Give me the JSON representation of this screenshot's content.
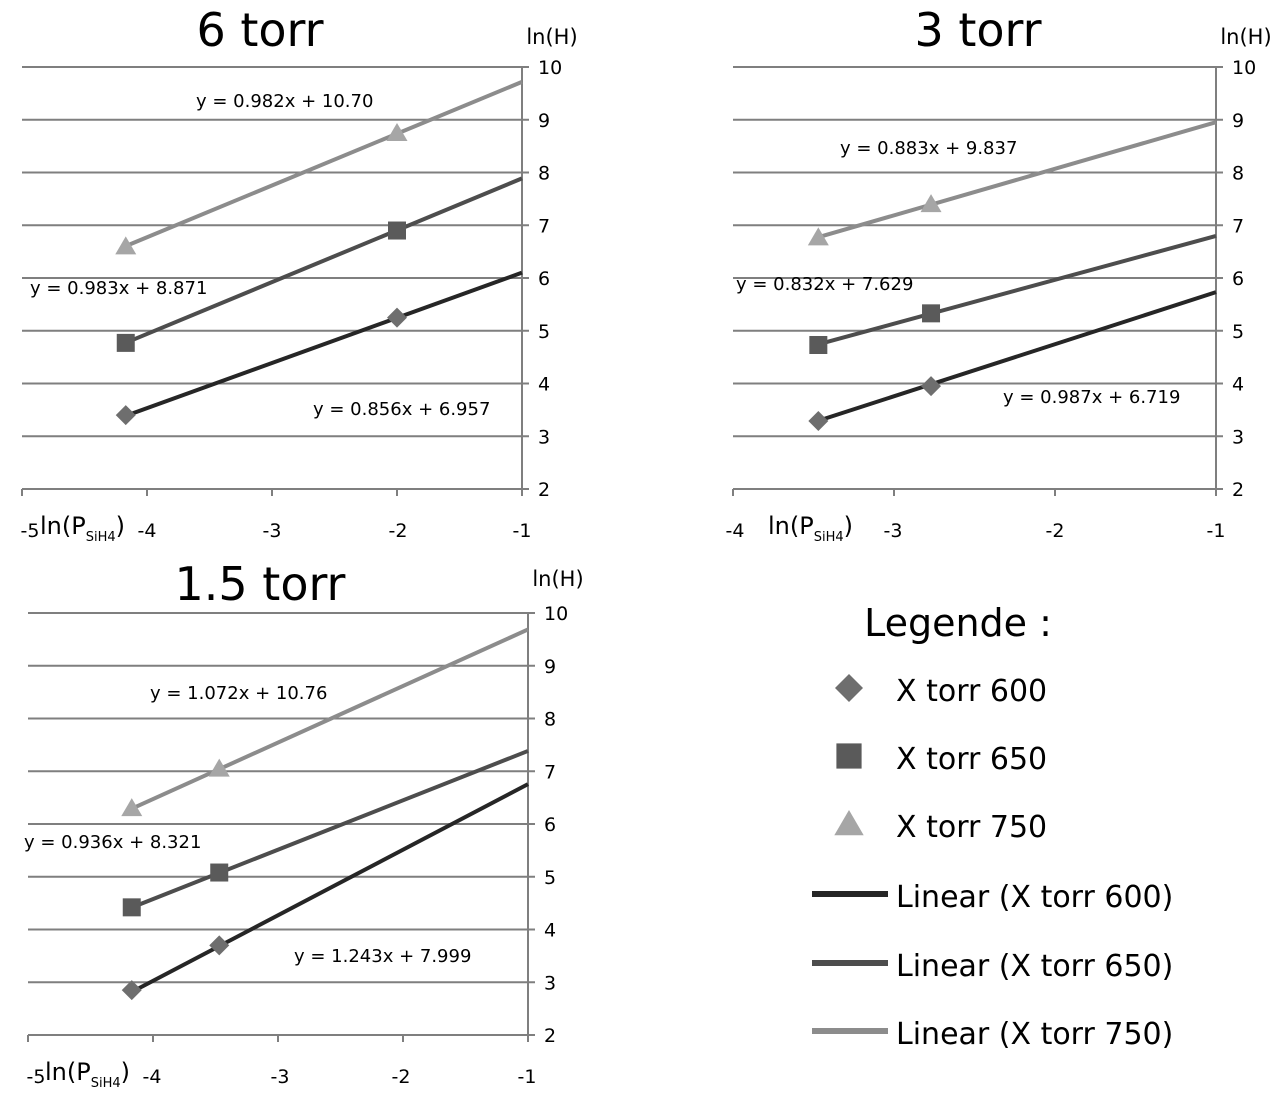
{
  "chart_data": [
    {
      "type": "scatter",
      "title": "6 torr",
      "xlabel": "ln(P",
      "xlabel_sub": "SiH4",
      "xlabel_close": ")",
      "ylabel": "ln(H)",
      "xlim": [
        -5,
        -1
      ],
      "ylim": [
        2,
        10
      ],
      "x_ticks": [
        "-5",
        "-4",
        "-3",
        "-2",
        "-1"
      ],
      "y_ticks": [
        "2",
        "3",
        "4",
        "5",
        "6",
        "7",
        "8",
        "9",
        "10"
      ],
      "grid": true,
      "series": [
        {
          "name": "X torr 600",
          "marker": "diamond",
          "color": "#262626",
          "points": [
            [
              -4.17,
              3.4
            ],
            [
              -2.0,
              5.25
            ]
          ],
          "trendline": {
            "slope": 0.856,
            "intercept": 6.957,
            "x_range": [
              -4.17,
              -1.0
            ],
            "equation": "y = 0.856x + 6.957"
          }
        },
        {
          "name": "X torr 650",
          "marker": "square",
          "color": "#4d4d4d",
          "points": [
            [
              -4.17,
              4.77
            ],
            [
              -2.0,
              6.9
            ]
          ],
          "trendline": {
            "slope": 0.983,
            "intercept": 8.871,
            "x_range": [
              -4.17,
              -1.0
            ],
            "equation": "y = 0.983x + 8.871"
          }
        },
        {
          "name": "X torr 750",
          "marker": "triangle",
          "color": "#8c8c8c",
          "points": [
            [
              -4.17,
              6.6
            ],
            [
              -2.0,
              8.75
            ]
          ],
          "trendline": {
            "slope": 0.982,
            "intercept": 10.7,
            "x_range": [
              -4.17,
              -1.0
            ],
            "equation": "y = 0.982x + 10.70"
          }
        }
      ]
    },
    {
      "type": "scatter",
      "title": "3 torr",
      "xlabel": "ln(P",
      "xlabel_sub": "SiH4",
      "xlabel_close": ")",
      "ylabel": "ln(H)",
      "xlim": [
        -4,
        -1
      ],
      "ylim": [
        2,
        10
      ],
      "x_ticks": [
        "-4",
        "-3",
        "-2",
        "-1"
      ],
      "y_ticks": [
        "2",
        "3",
        "4",
        "5",
        "6",
        "7",
        "8",
        "9",
        "10"
      ],
      "grid": true,
      "series": [
        {
          "name": "X torr 600",
          "marker": "diamond",
          "color": "#262626",
          "points": [
            [
              -3.47,
              3.29
            ],
            [
              -2.77,
              3.95
            ]
          ],
          "trendline": {
            "slope": 0.987,
            "intercept": 6.719,
            "x_range": [
              -3.47,
              -1.0
            ],
            "equation": "y = 0.987x + 6.719"
          }
        },
        {
          "name": "X torr 650",
          "marker": "square",
          "color": "#4d4d4d",
          "points": [
            [
              -3.47,
              4.73
            ],
            [
              -2.77,
              5.33
            ]
          ],
          "trendline": {
            "slope": 0.832,
            "intercept": 7.629,
            "x_range": [
              -3.47,
              -1.0
            ],
            "equation": "y = 0.832x + 7.629"
          }
        },
        {
          "name": "X torr 750",
          "marker": "triangle",
          "color": "#8c8c8c",
          "points": [
            [
              -3.47,
              6.77
            ],
            [
              -2.77,
              7.4
            ]
          ],
          "trendline": {
            "slope": 0.883,
            "intercept": 9.837,
            "x_range": [
              -3.47,
              -1.0
            ],
            "equation": "y = 0.883x + 9.837"
          }
        }
      ]
    },
    {
      "type": "scatter",
      "title": "1.5 torr",
      "xlabel": "ln(P",
      "xlabel_sub": "SiH4",
      "xlabel_close": ")",
      "ylabel": "ln(H)",
      "xlim": [
        -5,
        -1
      ],
      "ylim": [
        2,
        10
      ],
      "x_ticks": [
        "-5",
        "-4",
        "-3",
        "-2",
        "-1"
      ],
      "y_ticks": [
        "2",
        "3",
        "4",
        "5",
        "6",
        "7",
        "8",
        "9",
        "10"
      ],
      "grid": true,
      "series": [
        {
          "name": "X torr 600",
          "marker": "diamond",
          "color": "#262626",
          "points": [
            [
              -4.17,
              2.85
            ],
            [
              -3.47,
              3.7
            ]
          ],
          "trendline": {
            "slope": 1.243,
            "intercept": 7.999,
            "x_range": [
              -4.17,
              -1.0
            ],
            "equation": "y = 1.243x + 7.999"
          }
        },
        {
          "name": "X torr 650",
          "marker": "square",
          "color": "#4d4d4d",
          "points": [
            [
              -4.17,
              4.42
            ],
            [
              -3.47,
              5.08
            ]
          ],
          "trendline": {
            "slope": 0.936,
            "intercept": 8.321,
            "x_range": [
              -4.17,
              -1.0
            ],
            "equation": "y = 0.936x + 8.321"
          }
        },
        {
          "name": "X torr 750",
          "marker": "triangle",
          "color": "#8c8c8c",
          "points": [
            [
              -4.17,
              6.3
            ],
            [
              -3.47,
              7.05
            ]
          ],
          "trendline": {
            "slope": 1.072,
            "intercept": 10.76,
            "x_range": [
              -4.17,
              -1.0
            ],
            "equation": "y = 1.072x + 10.76"
          }
        }
      ]
    }
  ],
  "legend": {
    "title": "Legende :",
    "items": [
      {
        "kind": "marker",
        "marker": "diamond",
        "color": "#6e6e6e",
        "label": "X torr 600"
      },
      {
        "kind": "marker",
        "marker": "square",
        "color": "#5a5a5a",
        "label": "X torr 650"
      },
      {
        "kind": "marker",
        "marker": "triangle",
        "color": "#a6a6a6",
        "label": "X torr 750"
      },
      {
        "kind": "line",
        "color": "#262626",
        "label": "Linear (X torr 600)"
      },
      {
        "kind": "line",
        "color": "#4d4d4d",
        "label": "Linear (X torr 650)"
      },
      {
        "kind": "line",
        "color": "#8c8c8c",
        "label": "Linear (X torr 750)"
      }
    ]
  },
  "colors": {
    "axis": "#7f7f7f",
    "grid": "#7f7f7f",
    "text": "#000000",
    "marker_fill": {
      "diamond": "#6e6e6e",
      "square": "#5a5a5a",
      "triangle": "#a6a6a6"
    }
  }
}
